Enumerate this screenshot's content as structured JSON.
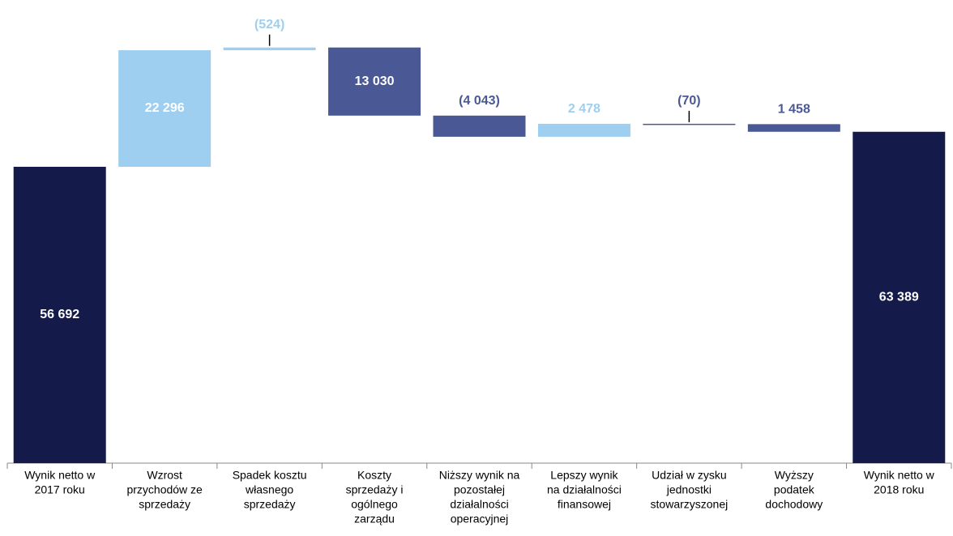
{
  "chart_data": {
    "type": "waterfall",
    "categories": [
      [
        "Wynik netto w",
        "2017 roku"
      ],
      [
        "Wzrost",
        "przychodów ze",
        "sprzedaży"
      ],
      [
        "Spadek kosztu",
        "własnego",
        "sprzedaży"
      ],
      [
        "Koszty",
        "sprzedaży i",
        "ogólnego",
        "zarządu"
      ],
      [
        "Niższy wynik na",
        "pozostałej",
        "działalności",
        "operacyjnej"
      ],
      [
        "Lepszy wynik",
        "na działalności",
        "finansowej"
      ],
      [
        "Udział w zysku",
        "jednostki",
        "stowarzyszonej"
      ],
      [
        "Wyższy",
        "podatek",
        "dochodowy"
      ],
      [
        "Wynik netto w",
        "2018 roku"
      ]
    ],
    "values": [
      56692,
      22296,
      524,
      -13030,
      -4043,
      2478,
      -70,
      -1458,
      63389
    ],
    "value_labels": [
      "56 692",
      "22 296",
      "(524)",
      "13 030",
      "(4 043)",
      "2 478",
      "(70)",
      "1 458",
      "63 389"
    ],
    "measure": [
      "total",
      "relative",
      "relative",
      "relative",
      "relative",
      "relative",
      "relative",
      "relative",
      "total"
    ],
    "colors": [
      "#141a4a",
      "#9ecff0",
      "#9ecff0",
      "#4a5896",
      "#4a5896",
      "#9ecff0",
      "#4a5896",
      "#4a5896",
      "#141a4a"
    ],
    "ylim": [
      0,
      88600
    ]
  }
}
